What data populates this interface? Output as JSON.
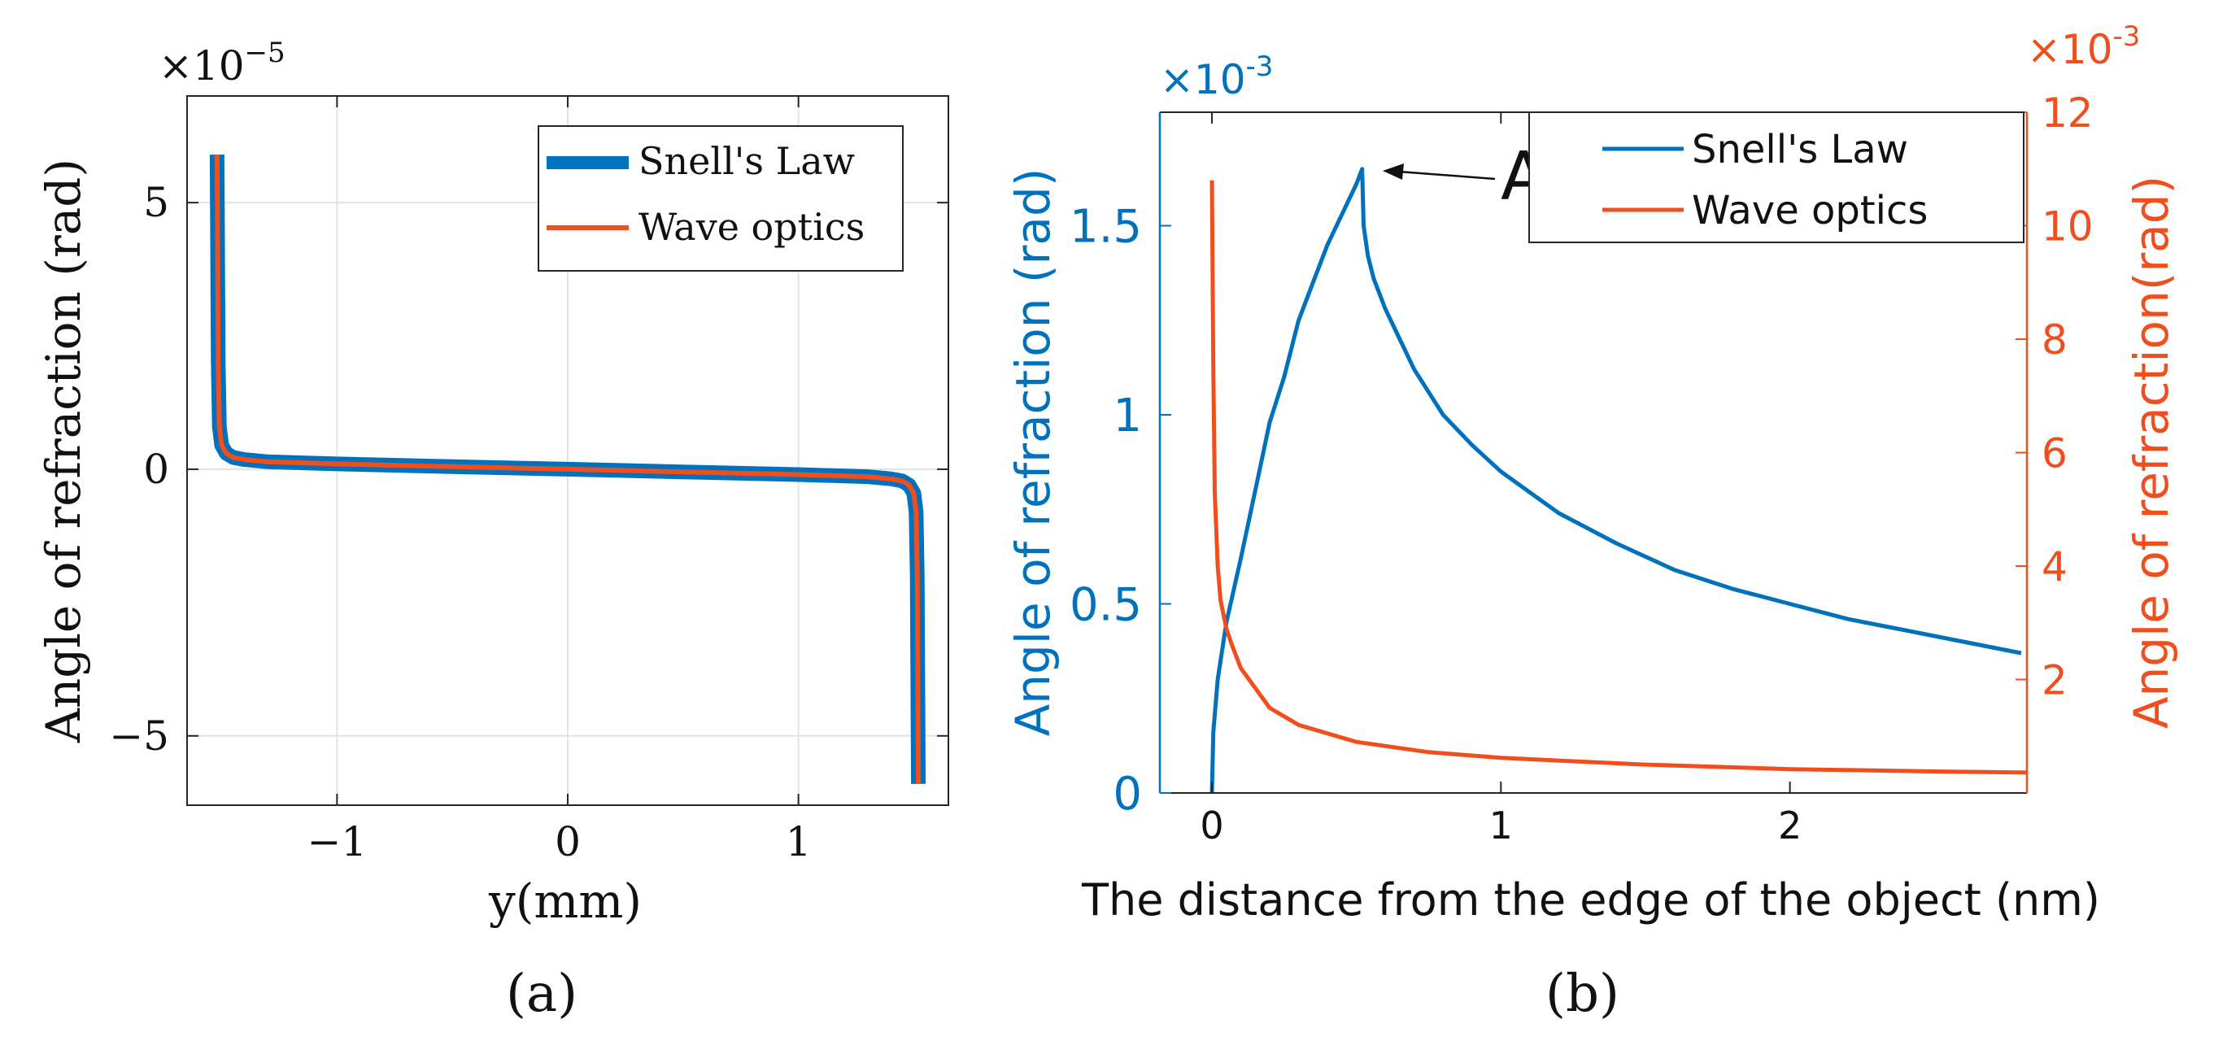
{
  "chart_data": [
    {
      "panel": "(a)",
      "type": "line",
      "xlabel": "y(mm)",
      "ylabel": "Angle of refraction (rad)",
      "y_exponent_label": "×10",
      "y_exponent_power": "−5",
      "xlim": [
        -1.65,
        1.65
      ],
      "ylim": [
        -6.3,
        7.0
      ],
      "xticks": [
        -1,
        0,
        1
      ],
      "xtick_labels": [
        "−1",
        "0",
        "1"
      ],
      "yticks": [
        -5,
        0,
        5
      ],
      "ytick_labels": [
        "−5",
        "0",
        "5"
      ],
      "grid": true,
      "legend": "top-right",
      "series": [
        {
          "name": "Snell's Law",
          "color": "#0072BD",
          "style": "thick",
          "x": [
            -1.52,
            -1.515,
            -1.51,
            -1.5,
            -1.48,
            -1.45,
            -1.4,
            -1.3,
            -1.0,
            -0.5,
            0.0,
            0.5,
            1.0,
            1.3,
            1.4,
            1.45,
            1.48,
            1.5,
            1.51,
            1.515,
            1.52
          ],
          "y": [
            5.9,
            2.0,
            0.8,
            0.45,
            0.3,
            0.22,
            0.18,
            0.14,
            0.1,
            0.05,
            0.0,
            -0.05,
            -0.1,
            -0.14,
            -0.18,
            -0.22,
            -0.3,
            -0.45,
            -0.8,
            -2.0,
            -5.9
          ]
        },
        {
          "name": "Wave optics",
          "color": "#F04E1C",
          "style": "thin",
          "x": [
            -1.52,
            -1.515,
            -1.51,
            -1.5,
            -1.48,
            -1.45,
            -1.4,
            -1.3,
            -1.0,
            -0.5,
            0.0,
            0.5,
            1.0,
            1.3,
            1.4,
            1.45,
            1.48,
            1.5,
            1.51,
            1.515,
            1.52
          ],
          "y": [
            5.9,
            2.0,
            0.8,
            0.45,
            0.3,
            0.22,
            0.18,
            0.14,
            0.1,
            0.05,
            0.0,
            -0.05,
            -0.1,
            -0.14,
            -0.18,
            -0.22,
            -0.3,
            -0.45,
            -0.8,
            -2.0,
            -5.9
          ]
        }
      ]
    },
    {
      "panel": "(b)",
      "type": "line",
      "xlabel": "The distance from the edge of the object (nm)",
      "ylabel_left": "Angle of refraction (rad)",
      "ylabel_right": "Angle of refraction(rad)",
      "y_exponent_label_left": "×10",
      "y_exponent_power_left": "-3",
      "y_exponent_label_right": "×10",
      "y_exponent_power_right": "-3",
      "xlim": [
        -0.18,
        2.82
      ],
      "ylim_left": [
        0,
        1.8
      ],
      "ylim_right": [
        0,
        12
      ],
      "xticks": [
        0,
        1,
        2
      ],
      "xtick_labels": [
        "0",
        "1",
        "2"
      ],
      "yticks_left": [
        0,
        0.5,
        1,
        1.5
      ],
      "ytick_labels_left": [
        "0",
        "0.5",
        "1",
        "1.5"
      ],
      "yticks_right": [
        2,
        4,
        6,
        8,
        10,
        12
      ],
      "ytick_labels_right": [
        "2",
        "4",
        "6",
        "8",
        "10",
        "12"
      ],
      "grid": false,
      "legend": "top-right",
      "annotation": {
        "text": "A",
        "x": 0.52,
        "y": 1.65
      },
      "series": [
        {
          "name": "Snell's Law",
          "axis": "left",
          "color": "#0072BD",
          "x": [
            0.0,
            0.005,
            0.02,
            0.05,
            0.1,
            0.15,
            0.2,
            0.25,
            0.3,
            0.35,
            0.4,
            0.45,
            0.5,
            0.52,
            0.525,
            0.54,
            0.56,
            0.6,
            0.65,
            0.7,
            0.8,
            0.9,
            1.0,
            1.2,
            1.4,
            1.6,
            1.8,
            2.0,
            2.2,
            2.4,
            2.6,
            2.8
          ],
          "y": [
            0.0,
            0.16,
            0.3,
            0.45,
            0.62,
            0.8,
            0.98,
            1.1,
            1.25,
            1.35,
            1.45,
            1.53,
            1.61,
            1.65,
            1.5,
            1.42,
            1.36,
            1.28,
            1.2,
            1.12,
            1.0,
            0.92,
            0.85,
            0.74,
            0.66,
            0.59,
            0.54,
            0.5,
            0.46,
            0.43,
            0.4,
            0.37
          ]
        },
        {
          "name": "Wave optics",
          "axis": "right",
          "color": "#F04E1C",
          "x": [
            0.0,
            0.005,
            0.01,
            0.02,
            0.03,
            0.05,
            0.07,
            0.1,
            0.15,
            0.2,
            0.3,
            0.5,
            0.75,
            1.0,
            1.5,
            2.0,
            2.5,
            2.82
          ],
          "y": [
            10.8,
            7.5,
            5.3,
            4.0,
            3.4,
            2.9,
            2.6,
            2.2,
            1.85,
            1.5,
            1.2,
            0.9,
            0.72,
            0.62,
            0.5,
            0.42,
            0.38,
            0.36
          ]
        }
      ]
    }
  ],
  "panel_labels": [
    "(a)",
    "(b)"
  ]
}
